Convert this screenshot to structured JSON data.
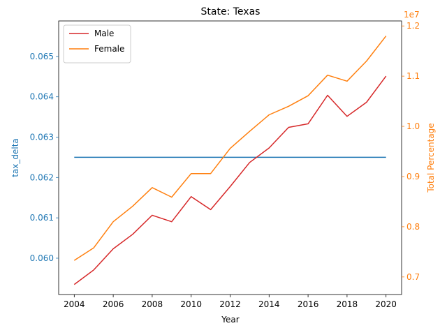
{
  "chart_data": {
    "type": "line",
    "title": "State: Texas",
    "xlabel": "Year",
    "ylabel_left": "tax_delta",
    "ylabel_right": "Total Percentage",
    "right_axis_offset_text": "1e7",
    "x": [
      2004,
      2005,
      2006,
      2007,
      2008,
      2009,
      2010,
      2011,
      2012,
      2013,
      2014,
      2015,
      2016,
      2017,
      2018,
      2019,
      2020
    ],
    "xlim": [
      2003.2,
      2020.8
    ],
    "xticks": [
      2004,
      2006,
      2008,
      2010,
      2012,
      2014,
      2016,
      2018,
      2020
    ],
    "ylim_left": [
      0.0591,
      0.06588
    ],
    "yticks_left": [
      "0.060",
      "0.061",
      "0.062",
      "0.063",
      "0.064",
      "0.065"
    ],
    "ylim_right": [
      0.665,
      1.21
    ],
    "yticks_right": [
      "0.7",
      "0.8",
      "0.9",
      "1.0",
      "1.1",
      "1.2"
    ],
    "legend_position": "top-left",
    "colors": {
      "left_axis": "#1f77b4",
      "right_axis": "#ff7f0e"
    },
    "series": [
      {
        "axis": "left",
        "color": "#1f77b4",
        "values": [
          0.0625,
          0.0625,
          0.0625,
          0.0625,
          0.0625,
          0.0625,
          0.0625,
          0.0625,
          0.0625,
          0.0625,
          0.0625,
          0.0625,
          0.0625,
          0.0625,
          0.0625,
          0.0625,
          0.0625
        ]
      },
      {
        "name": "Male",
        "axis": "right",
        "color": "#d62728",
        "values": [
          0.685,
          0.714,
          0.756,
          0.785,
          0.823,
          0.81,
          0.86,
          0.834,
          0.88,
          0.928,
          0.957,
          0.998,
          1.005,
          1.062,
          1.02,
          1.048,
          1.1
        ]
      },
      {
        "name": "Female",
        "axis": "right",
        "color": "#ff7f0e",
        "values": [
          0.733,
          0.758,
          0.81,
          0.841,
          0.878,
          0.859,
          0.906,
          0.906,
          0.956,
          0.99,
          1.023,
          1.04,
          1.061,
          1.102,
          1.09,
          1.13,
          1.18
        ]
      }
    ]
  }
}
